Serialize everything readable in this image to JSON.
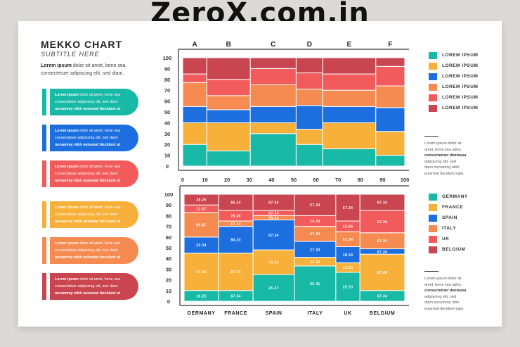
{
  "watermark": "ZeroX.com.in",
  "header": {
    "title": "MEKKO CHART",
    "subtitle": "SUBTITLE HERE",
    "intro_bold": "Lorem ipsum",
    "intro_text": "dolor sit amet, bene sea consectetuer adipiscing elit, sed diam."
  },
  "cards": [
    {
      "bold": "Lorem ipsum",
      "text1": "dolor sit amet, bene sea",
      "text2": "consectetuer adipiscing elit, sed diam",
      "text3": "nonummy nibh euismod tincidunt ut",
      "color": "#18b9a6"
    },
    {
      "bold": "Lorem ipsum",
      "text1": "dolor sit amet, bene sea",
      "text2": "consectetuer adipiscing elit, sed diam",
      "text3": "nonummy nibh euismod tincidunt ut",
      "color": "#1d6fe0"
    },
    {
      "bold": "Lorem ipsum",
      "text1": "dolor sit amet, bene sea",
      "text2": "consectetuer adipiscing elit, sed diam",
      "text3": "nonummy nibh euismod tincidunt ut",
      "color": "#f25b5b"
    },
    {
      "bold": "Lorem ipsum",
      "text1": "dolor sit amet, bene sea",
      "text2": "consectetuer adipiscing elit, sed diam",
      "text3": "nonummy nibh euismod tincidunt ut",
      "color": "#f7b03a"
    },
    {
      "bold": "Lorem ipsum",
      "text1": "dolor sit amet, bene sea",
      "text2": "consectetuer adipiscing elit, sed diam",
      "text3": "nonummy nibh euismod tincidunt ut",
      "color": "#f58b51"
    },
    {
      "bold": "Lorem ipsum",
      "text1": "dolor sit amet, bene sea",
      "text2": "consectetuer adipiscing elit, sed diam",
      "text3": "nonummy nibh euismod tincidunt ut",
      "color": "#c9454f"
    }
  ],
  "chart_data": [
    {
      "type": "bar",
      "stacked": true,
      "variable_width": true,
      "categories": [
        "A",
        "B",
        "C",
        "D",
        "E",
        "F"
      ],
      "x_edges": [
        0,
        10,
        28,
        47,
        58,
        80,
        92
      ],
      "x_ticks": [
        "0",
        "10",
        "20",
        "30",
        "40",
        "50",
        "60",
        "70",
        "80",
        "90",
        "100"
      ],
      "y_ticks": [
        "0",
        "10",
        "20",
        "30",
        "40",
        "50",
        "60",
        "70",
        "80",
        "90",
        "100"
      ],
      "ylim": [
        0,
        100
      ],
      "series": [
        {
          "name": "LOREM IPSUM",
          "color": "#18b9a6",
          "values": [
            20,
            14,
            30,
            20,
            16,
            10
          ]
        },
        {
          "name": "LOREM IPSUM",
          "color": "#f7b03a",
          "values": [
            20,
            26,
            10,
            14,
            24,
            22
          ]
        },
        {
          "name": "LOREM IPSUM",
          "color": "#1d6fe0",
          "values": [
            15,
            12,
            15,
            22,
            15,
            22
          ]
        },
        {
          "name": "LOREM IPSUM",
          "color": "#f58b51",
          "values": [
            22,
            13,
            20,
            15,
            15,
            20
          ]
        },
        {
          "name": "LOREM IPSUM",
          "color": "#f25b5b",
          "values": [
            8,
            15,
            15,
            15,
            15,
            18
          ]
        },
        {
          "name": "LOREM IPSUM",
          "color": "#c9454f",
          "values": [
            15,
            20,
            10,
            14,
            15,
            8
          ]
        }
      ],
      "legend_position": "right"
    },
    {
      "type": "bar",
      "stacked": true,
      "variable_width": true,
      "categories": [
        "GERMANY",
        "FRANCE",
        "SPAIN",
        "ITALY",
        "UK",
        "BELGIUM"
      ],
      "x_edges": [
        0,
        10,
        20,
        32,
        44,
        51,
        64
      ],
      "y_ticks": [
        "0",
        "10",
        "20",
        "30",
        "40",
        "50",
        "60",
        "70",
        "80",
        "90",
        "100"
      ],
      "ylim": [
        0,
        100
      ],
      "series": [
        {
          "name": "GERMANY",
          "color": "#18b9a6",
          "values": [
            10,
            10,
            25,
            33,
            27,
            10
          ],
          "labels": [
            "18.25",
            "67.34",
            "25.47",
            "65.41",
            "25.70",
            "67.34"
          ]
        },
        {
          "name": "FRANCE",
          "color": "#f7b03a",
          "values": [
            35,
            35,
            23,
            8,
            9,
            34
          ],
          "labels": [
            "67.34",
            "67.34",
            "76.24",
            "24.24",
            "13.34",
            "67.26"
          ]
        },
        {
          "name": "SPAIN",
          "color": "#1d6fe0",
          "values": [
            15,
            25,
            28,
            15,
            15,
            5
          ],
          "labels": [
            "20.34",
            "80.20",
            "67.34",
            "27.34",
            "18.34",
            "67.34"
          ]
        },
        {
          "name": "ITALY",
          "color": "#f58b51",
          "values": [
            23,
            5,
            4,
            14,
            14,
            15
          ],
          "labels": [
            "65.67",
            "67.34",
            "58.34",
            "67.34",
            "67.34",
            "67.34"
          ]
        },
        {
          "name": "UK",
          "color": "#f25b5b",
          "values": [
            7,
            10,
            5,
            10,
            10,
            21
          ],
          "labels": [
            "12.67",
            "78.36",
            "67.34",
            "14.34",
            "12.56",
            "67.34"
          ]
        },
        {
          "name": "BELGIUM",
          "color": "#c9454f",
          "values": [
            10,
            15,
            15,
            20,
            25,
            15
          ],
          "labels": [
            "38.25",
            "65.34",
            "67.56",
            "67.34",
            "67.34",
            "67.34"
          ]
        }
      ],
      "legend_position": "right"
    }
  ],
  "legend1": [
    "LOREM IPSUM",
    "LOREM IPSUM",
    "LOREM IPSUM",
    "LOREM IPSUM",
    "LOREM IPSUM",
    "LOREM IPSUM"
  ],
  "legend2": [
    "GERMANY",
    "FRANCE",
    "SPAIN",
    "ITALY",
    "UK",
    "BELGIUM"
  ],
  "notes": [
    {
      "l1": "Lorem ipsum dolor sit",
      "l2": "amet, bene sea adho.",
      "l3": "consectetuer dentesea",
      "l4": "adipiscing elit, sed",
      "l5": "diam nonummy nibh",
      "l6": "euismod tincidunt tupe."
    },
    {
      "l1": "Lorem ipsum dolor sit",
      "l2": "amet, bene sea adho.",
      "l3": "consectetuer dentesea",
      "l4": "adipiscing elit, sed",
      "l5": "diam nonummy nibh",
      "l6": "euismod tincidunt tupe."
    }
  ]
}
